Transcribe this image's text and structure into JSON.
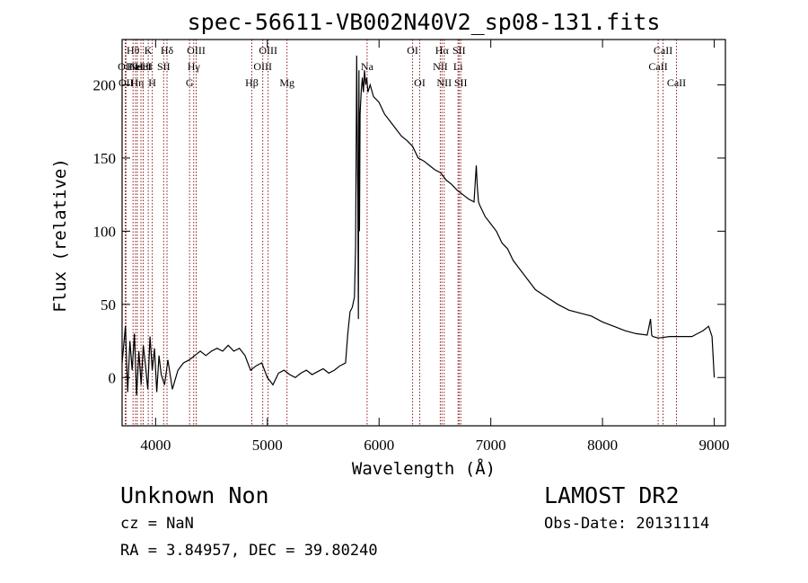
{
  "chart_data": {
    "type": "line",
    "title": "spec-56611-VB002N40V2_sp08-131.fits",
    "xlabel": "Wavelength (Å)",
    "ylabel": "Flux (relative)",
    "xlim": [
      3700,
      9100
    ],
    "ylim": [
      -33,
      231
    ],
    "x_ticks": [
      {
        "value": 4000,
        "label": "4000"
      },
      {
        "value": 5000,
        "label": "5000"
      },
      {
        "value": 6000,
        "label": "6000"
      },
      {
        "value": 7000,
        "label": "7000"
      },
      {
        "value": 8000,
        "label": "8000"
      },
      {
        "value": 9000,
        "label": "9000"
      }
    ],
    "y_ticks": [
      {
        "value": 0,
        "label": "0"
      },
      {
        "value": 50,
        "label": "50"
      },
      {
        "value": 100,
        "label": "100"
      },
      {
        "value": 150,
        "label": "150"
      },
      {
        "value": 200,
        "label": "200"
      }
    ],
    "line_color": "#000000",
    "marker_color": "#8b1a1a",
    "grid": false,
    "series": [
      {
        "x": [
          3700,
          3730,
          3750,
          3770,
          3790,
          3810,
          3830,
          3850,
          3870,
          3890,
          3910,
          3930,
          3950,
          3970,
          3990,
          4010,
          4030,
          4050,
          4080,
          4110,
          4150,
          4200,
          4250,
          4300,
          4350,
          4400,
          4450,
          4500,
          4550,
          4600,
          4650,
          4700,
          4750,
          4800,
          4850,
          4900,
          4950,
          5000,
          5050,
          5100,
          5150,
          5200,
          5250,
          5300,
          5350,
          5400,
          5450,
          5500,
          5550,
          5600,
          5650,
          5700,
          5720,
          5740,
          5760,
          5780,
          5790,
          5800,
          5810,
          5815,
          5820,
          5825,
          5830,
          5840,
          5850,
          5860,
          5870,
          5880,
          5890,
          5900,
          5920,
          5950,
          6000,
          6050,
          6100,
          6150,
          6200,
          6250,
          6300,
          6350,
          6400,
          6450,
          6500,
          6550,
          6600,
          6650,
          6700,
          6750,
          6800,
          6850,
          6870,
          6880,
          6890,
          6900,
          6950,
          7000,
          7050,
          7100,
          7150,
          7200,
          7250,
          7300,
          7350,
          7400,
          7500,
          7600,
          7700,
          7800,
          7900,
          8000,
          8100,
          8200,
          8300,
          8400,
          8430,
          8440,
          8450,
          8500,
          8600,
          8700,
          8800,
          8850,
          8900,
          8950,
          8980,
          9000
        ],
        "y": [
          10,
          35,
          -10,
          25,
          5,
          30,
          -12,
          18,
          -5,
          22,
          8,
          -8,
          28,
          5,
          20,
          -10,
          15,
          2,
          -5,
          12,
          -8,
          5,
          10,
          12,
          15,
          18,
          15,
          18,
          20,
          18,
          22,
          18,
          20,
          15,
          5,
          8,
          10,
          0,
          -5,
          3,
          5,
          2,
          0,
          3,
          5,
          2,
          4,
          6,
          3,
          5,
          8,
          10,
          30,
          45,
          48,
          55,
          90,
          220,
          120,
          40,
          210,
          100,
          180,
          195,
          205,
          195,
          210,
          200,
          205,
          195,
          200,
          192,
          188,
          180,
          175,
          170,
          165,
          162,
          158,
          150,
          148,
          145,
          142,
          140,
          135,
          132,
          128,
          125,
          122,
          120,
          145,
          130,
          120,
          118,
          110,
          105,
          100,
          92,
          88,
          80,
          75,
          70,
          65,
          60,
          55,
          50,
          46,
          44,
          42,
          38,
          35,
          32,
          30,
          29,
          40,
          29,
          28,
          27,
          28,
          28,
          28,
          30,
          32,
          35,
          28,
          0
        ]
      }
    ],
    "line_markers": [
      {
        "x": 3728,
        "label": "OII",
        "row": 1
      },
      {
        "x": 3735,
        "label": "OII",
        "row": 2
      },
      {
        "x": 3798,
        "label": "Hθ",
        "row": 0
      },
      {
        "x": 3820,
        "label": "HeI",
        "row": 1
      },
      {
        "x": 3836,
        "label": "Hη",
        "row": 2
      },
      {
        "x": 3869,
        "label": "NeIII",
        "row": 1
      },
      {
        "x": 3889,
        "label": "HeI",
        "row": 1
      },
      {
        "x": 3934,
        "label": "K",
        "row": 0
      },
      {
        "x": 3970,
        "label": "H",
        "row": 2
      },
      {
        "x": 4072,
        "label": "SII",
        "row": 1
      },
      {
        "x": 4102,
        "label": "Hδ",
        "row": 0
      },
      {
        "x": 4304,
        "label": "G",
        "row": 2
      },
      {
        "x": 4341,
        "label": "Hγ",
        "row": 1
      },
      {
        "x": 4363,
        "label": "OIII",
        "row": 0
      },
      {
        "x": 4861,
        "label": "Hβ",
        "row": 2
      },
      {
        "x": 4959,
        "label": "OIII",
        "row": 1
      },
      {
        "x": 5007,
        "label": "OIII",
        "row": 0
      },
      {
        "x": 5176,
        "label": "Mg",
        "row": 2
      },
      {
        "x": 5893,
        "label": "Na",
        "row": 1
      },
      {
        "x": 6300,
        "label": "OI",
        "row": 0
      },
      {
        "x": 6364,
        "label": "OI",
        "row": 2
      },
      {
        "x": 6548,
        "label": "NII",
        "row": 1
      },
      {
        "x": 6563,
        "label": "Hα",
        "row": 0
      },
      {
        "x": 6583,
        "label": "NII",
        "row": 2
      },
      {
        "x": 6707,
        "label": "Li",
        "row": 1
      },
      {
        "x": 6716,
        "label": "SII",
        "row": 0
      },
      {
        "x": 6731,
        "label": "SII",
        "row": 2
      },
      {
        "x": 8498,
        "label": "CaII",
        "row": 1
      },
      {
        "x": 8542,
        "label": "CaII",
        "row": 0
      },
      {
        "x": 8662,
        "label": "CaII",
        "row": 2
      }
    ]
  },
  "footer": {
    "object": "Unknown   Non",
    "survey": "LAMOST DR2",
    "cz": "cz = NaN",
    "obs_date": "Obs-Date: 20131114",
    "radec": "RA =   3.84957, DEC =  39.80240"
  }
}
